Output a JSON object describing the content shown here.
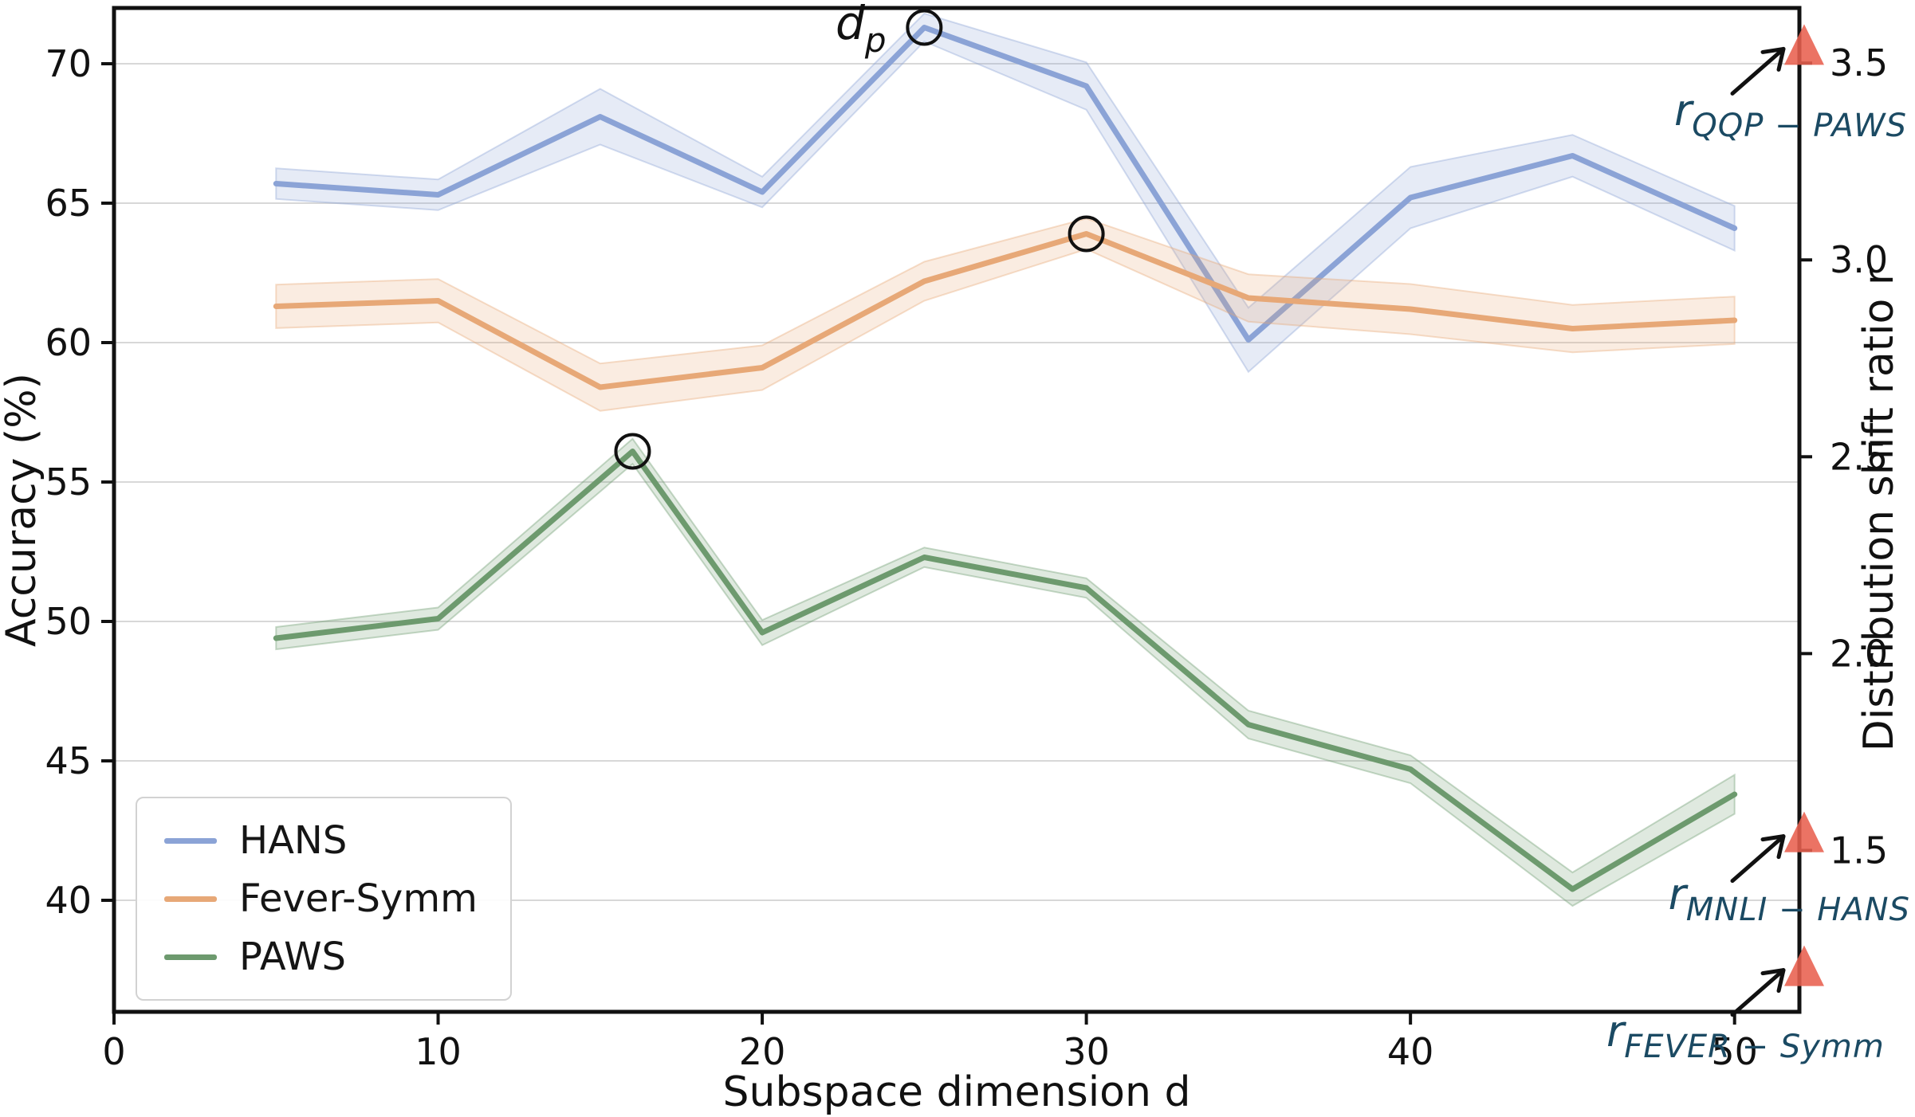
{
  "chart_data": {
    "type": "line",
    "title": "",
    "xlabel": "Subspace dimension d",
    "ylabel_left": "Accuracy (%)",
    "ylabel_right": "Distribution shift ratio r",
    "xlim": [
      0,
      52
    ],
    "ylim_left": [
      36,
      72
    ],
    "ylim_right": [
      1.09,
      3.64
    ],
    "x_ticks": [
      0,
      10,
      20,
      30,
      40,
      50
    ],
    "y_ticks_left": [
      40,
      45,
      50,
      55,
      60,
      65,
      70
    ],
    "y_ticks_right": [
      1.5,
      2.0,
      2.5,
      3.0,
      3.5
    ],
    "grid": "horizontal",
    "legend_position": "lower-left",
    "series": [
      {
        "name": "HANS",
        "color": "#8ba3d6",
        "band_color": "#8ba3d6",
        "x": [
          5,
          10,
          15,
          20,
          25,
          30,
          35,
          40,
          45,
          50
        ],
        "values": [
          65.7,
          65.3,
          68.1,
          65.4,
          71.3,
          69.2,
          60.1,
          65.2,
          66.7,
          64.1
        ],
        "band_halfwidth": [
          0.55,
          0.55,
          1.0,
          0.55,
          0.5,
          0.85,
          1.15,
          1.1,
          0.75,
          0.8
        ],
        "circled_point": {
          "x": 25,
          "y": 71.3
        }
      },
      {
        "name": "Fever-Symm",
        "color": "#e7a877",
        "band_color": "#e7a877",
        "x": [
          5,
          10,
          15,
          20,
          25,
          30,
          35,
          40,
          45,
          50
        ],
        "values": [
          61.3,
          61.5,
          58.4,
          59.1,
          62.2,
          63.9,
          61.6,
          61.2,
          60.5,
          60.8
        ],
        "band_halfwidth": [
          0.78,
          0.78,
          0.85,
          0.8,
          0.7,
          0.55,
          0.85,
          0.9,
          0.85,
          0.85
        ],
        "circled_point": {
          "x": 30,
          "y": 63.9
        }
      },
      {
        "name": "PAWS",
        "color": "#6d9a6e",
        "band_color": "#6d9a6e",
        "x": [
          5,
          10,
          16,
          20,
          25,
          30,
          35,
          40,
          45,
          50
        ],
        "values": [
          49.4,
          50.1,
          56.1,
          49.6,
          52.3,
          51.2,
          46.3,
          44.7,
          40.4,
          43.8
        ],
        "band_halfwidth": [
          0.4,
          0.4,
          0.45,
          0.45,
          0.35,
          0.35,
          0.5,
          0.5,
          0.6,
          0.7
        ],
        "circled_point": {
          "x": 16,
          "y": 56.1
        }
      }
    ],
    "right_axis_markers": [
      {
        "label_main": "r",
        "label_sub": "QQP − PAWS",
        "r_value": 3.54
      },
      {
        "label_main": "r",
        "label_sub": "MNLI − HANS",
        "r_value": 1.54
      },
      {
        "label_main": "r",
        "label_sub": "FEVER − Symm",
        "r_value": 1.2
      }
    ],
    "marker_color": "#e8604f",
    "annotation_color": "#1b4a63"
  },
  "annotations": {
    "dp": {
      "main": "d",
      "sub": "p"
    },
    "qqp": {
      "main": "r",
      "sub": "QQP − PAWS"
    },
    "mnli": {
      "main": "r",
      "sub": "MNLI − HANS"
    },
    "fever": {
      "main": "r",
      "sub": "FEVER − Symm"
    }
  },
  "legend": {
    "item1": "HANS",
    "item2": "Fever-Symm",
    "item3": "PAWS"
  }
}
